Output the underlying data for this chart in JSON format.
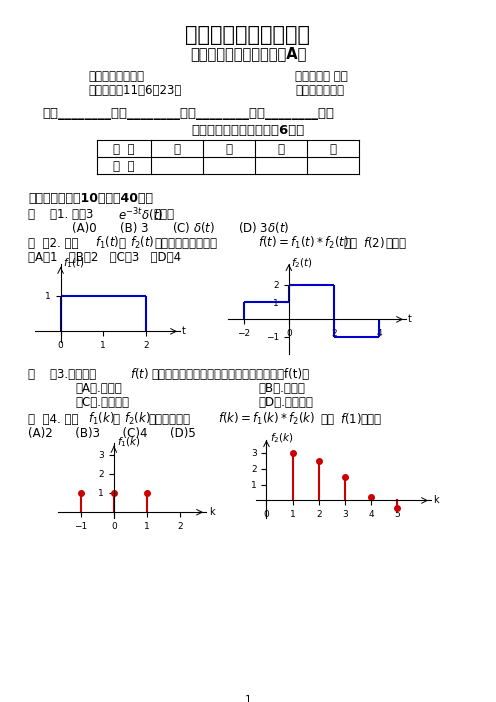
{
  "title": "华中科技大学文华学院",
  "subtitle": "《信号与系统》期末考试A卷",
  "info1_left": "课程性质：必修课",
  "info1_right": "使用范围： 本科",
  "info2_left": "使用时间：11年6月23日",
  "info2_right": "考试方式：闭卷",
  "student_line": "学号________专业________班级________姓名________成绩",
  "notice": "（请考生注意：本试卷兲6页）",
  "table_h1": "题  号",
  "table_h2": "一",
  "table_h3": "二",
  "table_h4": "三",
  "table_h5": "四",
  "table_r1": "得  分",
  "section1": "一、选择题（入10小题，40分）",
  "q1_line": "（    ）1. 函数3",
  "q1_options": [
    "(A)0",
    "(B) 3",
    "(D) 3"
  ],
  "q2_line1": "（  ）2. 信号",
  "q2_line2": "的波形如图所示，设",
  "q2_line3": "，则",
  "q2_line4": "等于：",
  "q2_opts": "（A） 1    （B） 2    （C） 3    （D） 4",
  "q3_line": "（    ）3.周期信号",
  "q3_line2": "的傅里叶级数展开式中仅含奇次谐波分量，f(t)是",
  "q3_optA": "（A）.偶函数",
  "q3_optB": "（B）.奇函数",
  "q3_optC": "（C）.奇谐函数",
  "q3_optD": "（D）.偶谐函数",
  "q4_line": "（  ）4. 序列",
  "q4_line2": "如图所示，设",
  "q4_line3": "，则",
  "q4_line4": "等于：",
  "q4_opts": "(A)2      (B)3      (C)4      (D)5",
  "page_num": "1",
  "bg_color": "#ffffff",
  "plot_color": "#0000cc",
  "stem_color": "#cc0000"
}
